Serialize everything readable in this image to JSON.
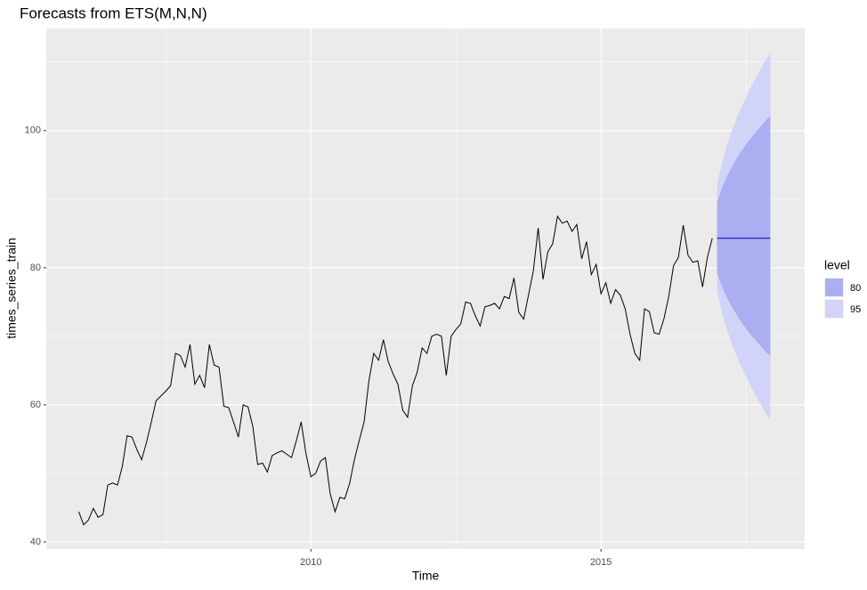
{
  "chart_data": {
    "type": "line",
    "title": "Forecasts from ETS(M,N,N)",
    "xlabel": "Time",
    "ylabel": "times_series_train",
    "x": [
      2006.0,
      2006.083,
      2006.167,
      2006.25,
      2006.333,
      2006.417,
      2006.5,
      2006.583,
      2006.667,
      2006.75,
      2006.833,
      2006.917,
      2007.0,
      2007.083,
      2007.167,
      2007.25,
      2007.333,
      2007.417,
      2007.5,
      2007.583,
      2007.667,
      2007.75,
      2007.833,
      2007.917,
      2008.0,
      2008.083,
      2008.167,
      2008.25,
      2008.333,
      2008.417,
      2008.5,
      2008.583,
      2008.667,
      2008.75,
      2008.833,
      2008.917,
      2009.0,
      2009.083,
      2009.167,
      2009.25,
      2009.333,
      2009.417,
      2009.5,
      2009.583,
      2009.667,
      2009.75,
      2009.833,
      2009.917,
      2010.0,
      2010.083,
      2010.167,
      2010.25,
      2010.333,
      2010.417,
      2010.5,
      2010.583,
      2010.667,
      2010.75,
      2010.833,
      2010.917,
      2011.0,
      2011.083,
      2011.167,
      2011.25,
      2011.333,
      2011.417,
      2011.5,
      2011.583,
      2011.667,
      2011.75,
      2011.833,
      2011.917,
      2012.0,
      2012.083,
      2012.167,
      2012.25,
      2012.333,
      2012.417,
      2012.5,
      2012.583,
      2012.667,
      2012.75,
      2012.833,
      2012.917,
      2013.0,
      2013.083,
      2013.167,
      2013.25,
      2013.333,
      2013.417,
      2013.5,
      2013.583,
      2013.667,
      2013.75,
      2013.833,
      2013.917,
      2014.0,
      2014.083,
      2014.167,
      2014.25,
      2014.333,
      2014.417,
      2014.5,
      2014.583,
      2014.667,
      2014.75,
      2014.833,
      2014.917,
      2015.0,
      2015.083,
      2015.167,
      2015.25,
      2015.333,
      2015.417,
      2015.5,
      2015.583,
      2015.667,
      2015.75,
      2015.833,
      2015.917,
      2016.0,
      2016.083,
      2016.167,
      2016.25,
      2016.333,
      2016.417,
      2016.5,
      2016.583,
      2016.667,
      2016.75,
      2016.833,
      2016.917
    ],
    "values": [
      44.4,
      42.5,
      43.2,
      44.9,
      43.6,
      44.0,
      48.3,
      48.6,
      48.3,
      51.0,
      55.5,
      55.3,
      53.5,
      52.0,
      54.5,
      57.5,
      60.6,
      61.3,
      62.0,
      62.8,
      67.5,
      67.2,
      65.5,
      68.8,
      63.0,
      64.3,
      62.5,
      68.8,
      65.8,
      65.5,
      59.8,
      59.6,
      57.5,
      55.3,
      60.0,
      59.7,
      56.8,
      51.3,
      51.5,
      50.2,
      52.6,
      53.0,
      53.3,
      52.8,
      52.3,
      54.8,
      57.5,
      52.8,
      49.5,
      50.0,
      51.8,
      52.3,
      47.0,
      44.4,
      46.5,
      46.3,
      48.5,
      52.0,
      54.8,
      57.5,
      63.5,
      67.5,
      66.5,
      69.5,
      66.3,
      64.5,
      63.0,
      59.2,
      58.2,
      62.8,
      64.8,
      68.3,
      67.5,
      70.0,
      70.3,
      70.0,
      64.3,
      70.0,
      71.0,
      71.8,
      75.0,
      74.8,
      73.0,
      71.5,
      74.3,
      74.5,
      74.8,
      74.0,
      75.8,
      75.5,
      78.5,
      73.5,
      72.5,
      76.0,
      79.5,
      85.8,
      78.3,
      82.3,
      83.5,
      87.5,
      86.5,
      86.8,
      85.3,
      86.3,
      81.3,
      83.8,
      79.0,
      80.5,
      76.2,
      77.8,
      74.8,
      76.8,
      76.0,
      74.0,
      70.3,
      67.5,
      66.5,
      74.0,
      73.6,
      70.5,
      70.3,
      72.5,
      75.8,
      80.3,
      81.5,
      86.2,
      81.8,
      80.8,
      81.0,
      77.2,
      81.5,
      84.3
    ],
    "color": "#000000",
    "forecast": {
      "x": [
        2017.0,
        2017.083,
        2017.167,
        2017.25,
        2017.333,
        2017.417,
        2017.5,
        2017.583,
        2017.667,
        2017.75,
        2017.833,
        2017.917
      ],
      "values": [
        84.3,
        84.3,
        84.3,
        84.3,
        84.3,
        84.3,
        84.3,
        84.3,
        84.3,
        84.3,
        84.3,
        84.3
      ],
      "color": "#0000aa"
    },
    "legend_title": "level",
    "intervals": [
      {
        "name": "80",
        "color": "#abaef0",
        "lower": [
          79.3,
          77.3,
          75.7,
          74.4,
          73.2,
          72.1,
          71.1,
          70.2,
          69.4,
          68.6,
          67.8,
          67.1
        ],
        "upper": [
          89.5,
          91.6,
          93.3,
          94.6,
          95.9,
          97.0,
          98.0,
          98.9,
          99.8,
          100.6,
          101.4,
          102.2
        ]
      },
      {
        "name": "95",
        "color": "#d1d3f8",
        "lower": [
          76.7,
          73.5,
          71.0,
          69.0,
          67.2,
          65.6,
          64.1,
          62.7,
          61.4,
          60.1,
          58.9,
          57.8
        ],
        "upper": [
          92.1,
          95.3,
          97.8,
          99.9,
          101.7,
          103.4,
          104.9,
          106.3,
          107.7,
          109.0,
          110.2,
          111.3
        ]
      }
    ],
    "xlim": [
      2005.44,
      2018.51
    ],
    "ylim": [
      38.96,
      114.9
    ],
    "xticks": [
      2010,
      2015
    ],
    "yticks": [
      40,
      60,
      80,
      100
    ],
    "grid": true
  }
}
